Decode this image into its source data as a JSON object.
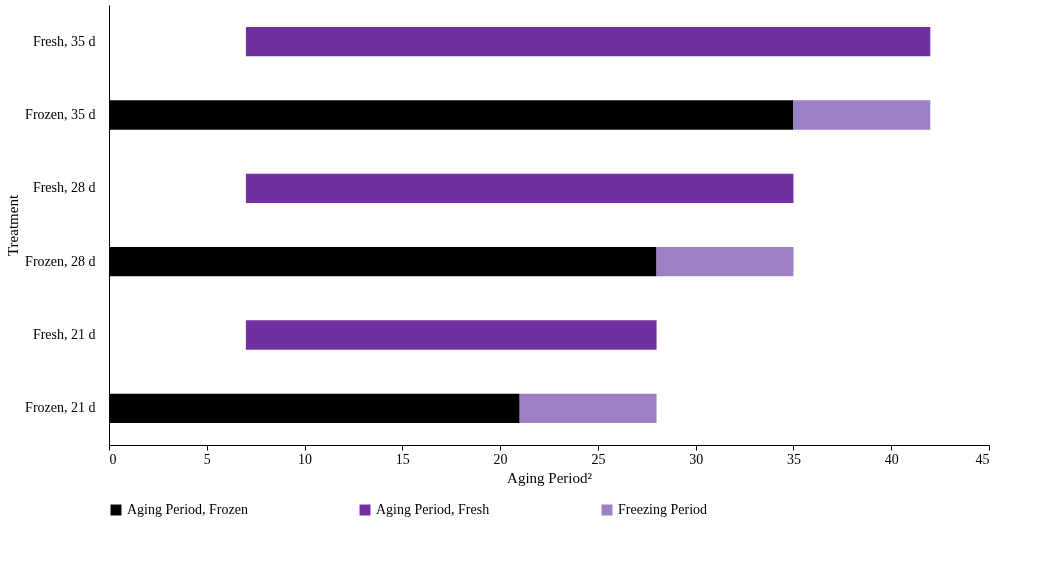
{
  "chart_data": {
    "type": "bar",
    "orientation": "horizontal",
    "xlabel": "Aging Period²",
    "ylabel": "Treatment",
    "categories": [
      "Fresh, 35 d",
      "Frozen, 35 d",
      "Fresh, 28 d",
      "Frozen, 28 d",
      "Fresh, 21 d",
      "Frozen, 21 d"
    ],
    "series": [
      {
        "name": "Aging Period, Frozen",
        "color": "#000000",
        "values": [
          null,
          35,
          null,
          28,
          null,
          21
        ]
      },
      {
        "name": "Aging Period, Fresh",
        "color": "#7030a0",
        "values": [
          35,
          null,
          28,
          null,
          21,
          null
        ],
        "base": [
          7,
          null,
          7,
          null,
          7,
          null
        ]
      },
      {
        "name": "Freezing Period",
        "color": "#9b80c4",
        "values": [
          null,
          7,
          null,
          7,
          null,
          7
        ]
      }
    ],
    "xlim": [
      0,
      45
    ],
    "xticks": [
      0,
      5,
      10,
      15,
      20,
      25,
      30,
      35,
      40,
      45
    ],
    "grid": false,
    "legend": "bottom",
    "stacked": true
  }
}
